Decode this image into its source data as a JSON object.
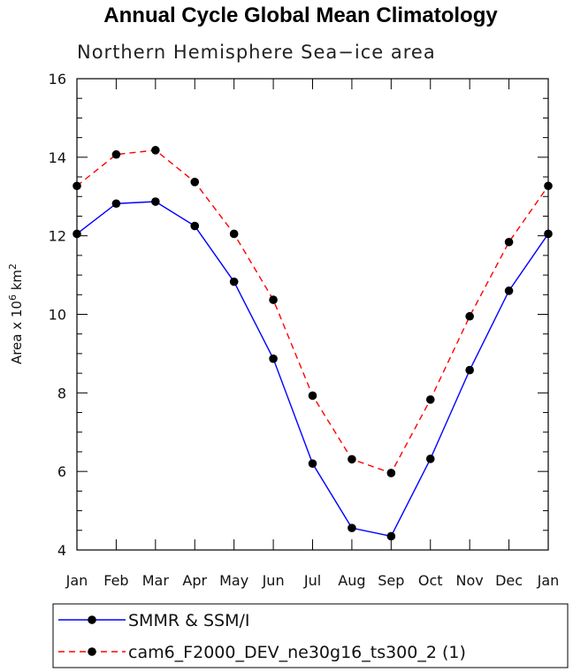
{
  "chart_data": {
    "type": "line",
    "title": "Annual Cycle Global Mean Climatology",
    "subtitle": "Northern Hemisphere Sea−ice area",
    "ylabel": "Area x 10",
    "ylabel_exp": "6",
    "ylabel_unit": " km",
    "ylabel_unit_exp": "2",
    "ylim": [
      4,
      16
    ],
    "yticks": [
      4,
      6,
      8,
      10,
      12,
      14,
      16
    ],
    "categories": [
      "Jan",
      "Feb",
      "Mar",
      "Apr",
      "May",
      "Jun",
      "Jul",
      "Aug",
      "Sep",
      "Oct",
      "Nov",
      "Dec",
      "Jan"
    ],
    "series": [
      {
        "name": "SMMR & SSM/I",
        "color": "#0000ff",
        "dash": "solid",
        "values": [
          12.05,
          12.82,
          12.87,
          12.25,
          10.83,
          8.87,
          6.2,
          4.56,
          4.35,
          6.32,
          8.58,
          10.6,
          12.05
        ]
      },
      {
        "name": "cam6_F2000_DEV_ne30g16_ts300_2 (1)",
        "color": "#ff0000",
        "dash": "dashed",
        "values": [
          13.27,
          14.07,
          14.18,
          13.37,
          12.05,
          10.37,
          7.93,
          6.31,
          5.96,
          7.83,
          9.95,
          11.84,
          13.27
        ]
      }
    ],
    "legend_position": "bottom"
  }
}
